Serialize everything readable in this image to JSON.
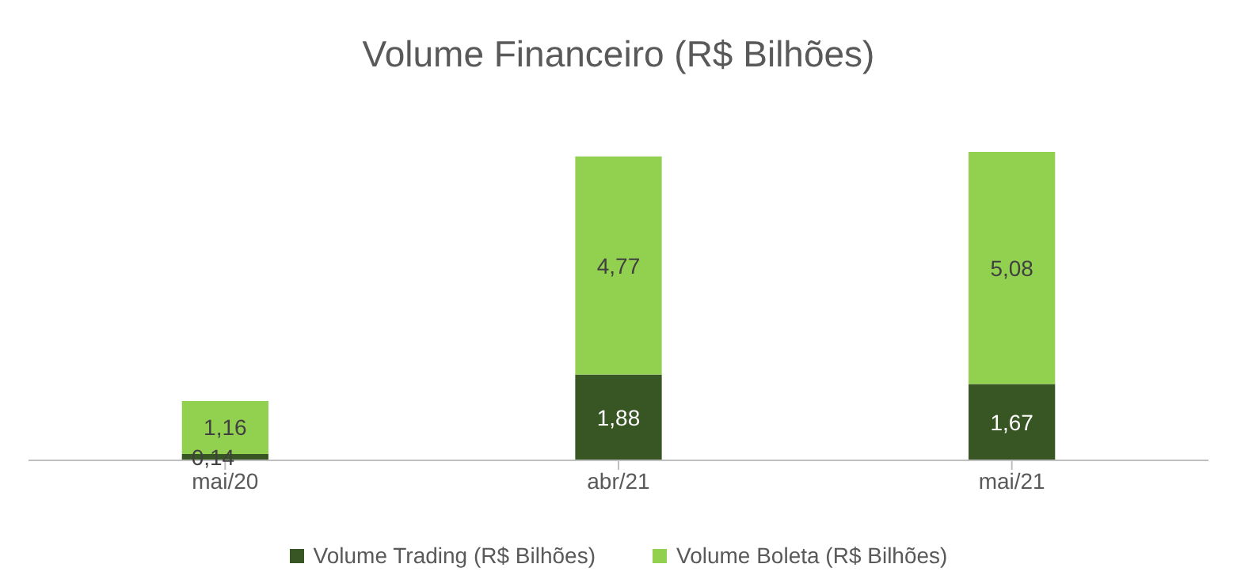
{
  "chart_data": {
    "type": "bar",
    "title": "Volume Financeiro (R$ Bilhões)",
    "categories": [
      "mai/20",
      "abr/21",
      "mai/21"
    ],
    "stacked": true,
    "legend": "bottom",
    "series": [
      {
        "name": "Volume Trading (R$ Bilhões)",
        "color": "#375623",
        "values": [
          0.14,
          1.88,
          1.67
        ],
        "value_labels": [
          "0,14",
          "1,88",
          "1,67"
        ]
      },
      {
        "name": "Volume Boleta (R$ Bilhões)",
        "color": "#92d050",
        "values": [
          1.16,
          4.77,
          5.08
        ],
        "value_labels": [
          "1,16",
          "4,77",
          "5,08"
        ]
      }
    ]
  }
}
